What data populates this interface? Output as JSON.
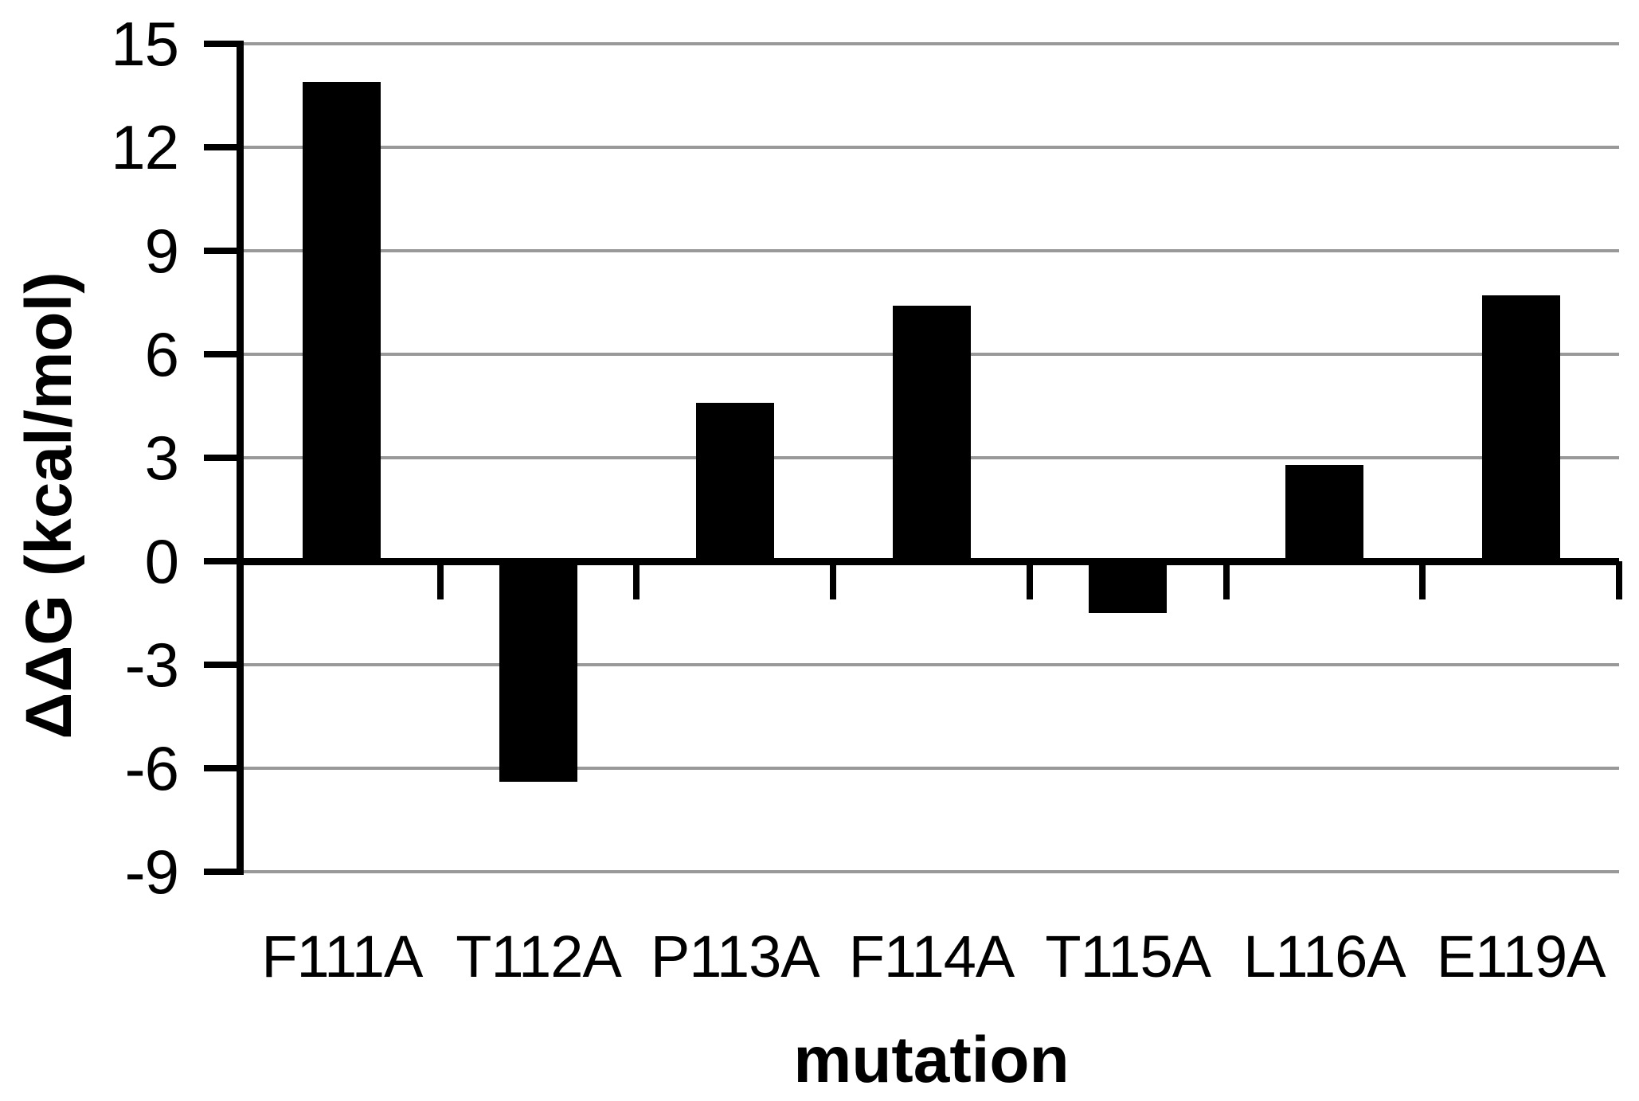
{
  "chart_data": {
    "type": "bar",
    "title": "",
    "categories": [
      "F111A",
      "T112A",
      "P113A",
      "F114A",
      "T115A",
      "L116A",
      "E119A"
    ],
    "values": [
      13.9,
      -6.4,
      4.6,
      7.4,
      -1.5,
      2.8,
      7.7
    ],
    "xlabel": "mutation",
    "ylabel": "ΔΔG (kcal/mol)",
    "ylim": [
      -9,
      15
    ],
    "yticks": [
      15,
      12,
      9,
      6,
      3,
      0,
      -3,
      -6,
      -9
    ],
    "grid": true,
    "legend": false,
    "colors": {
      "bar": "#000000",
      "gridline": "#999999",
      "axis": "#000000",
      "background": "#ffffff",
      "text": "#000000"
    }
  }
}
